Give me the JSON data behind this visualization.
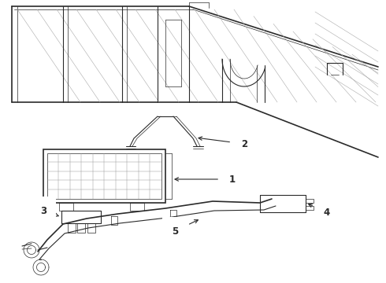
{
  "bg_color": "#ffffff",
  "line_color": "#2a2a2a",
  "lw": 0.8,
  "lw_thin": 0.5,
  "lw_thick": 1.2,
  "label_fontsize": 8.5,
  "figsize": [
    4.9,
    3.6
  ],
  "dpi": 100
}
